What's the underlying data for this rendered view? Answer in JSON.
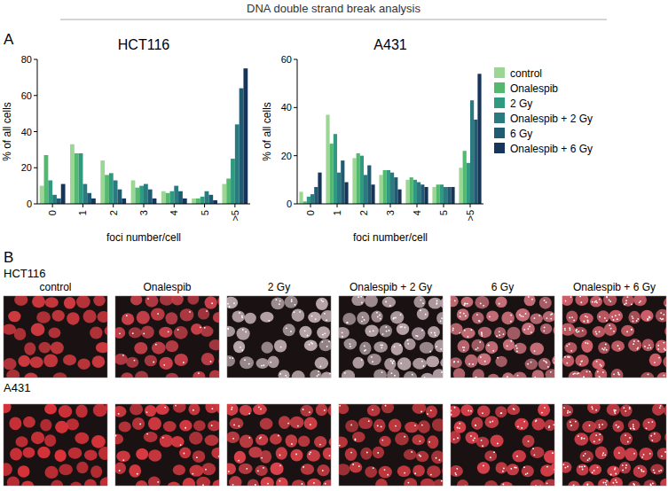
{
  "figure_title": "DNA double strand break analysis",
  "panel_a": {
    "label": "A"
  },
  "chart_data": [
    {
      "type": "bar",
      "title": "HCT116",
      "x_label": "foci number/cell",
      "y_label": "% of all cells",
      "categories": [
        "0",
        "1",
        "2",
        "3",
        "4",
        "5",
        ">5"
      ],
      "ylim": [
        0,
        80
      ],
      "yticks": [
        0,
        20,
        40,
        60,
        80
      ],
      "series": [
        {
          "name": "control",
          "color": "#9bd694",
          "values": [
            10,
            33,
            24,
            13,
            7,
            3,
            11
          ]
        },
        {
          "name": "Onalespib",
          "color": "#54b86e",
          "values": [
            27,
            28,
            16,
            9,
            6,
            3,
            14
          ]
        },
        {
          "name": "2 Gy",
          "color": "#2f9a80",
          "values": [
            13,
            28,
            17,
            10,
            7,
            4,
            25
          ]
        },
        {
          "name": "Onalespib + 2 Gy",
          "color": "#2a7b80",
          "values": [
            5,
            11,
            13,
            11,
            10,
            7,
            44
          ]
        },
        {
          "name": "6 Gy",
          "color": "#1f5b73",
          "values": [
            3,
            6,
            8,
            8,
            7,
            5,
            64
          ]
        },
        {
          "name": "Onalespib + 6 Gy",
          "color": "#15355a",
          "values": [
            11,
            3,
            3,
            3,
            3,
            2,
            75
          ]
        }
      ]
    },
    {
      "type": "bar",
      "title": "A431",
      "x_label": "foci number/cell",
      "y_label": "% of all cells",
      "categories": [
        "0",
        "1",
        "2",
        "3",
        "4",
        "5",
        ">5"
      ],
      "ylim": [
        0,
        60
      ],
      "yticks": [
        0,
        20,
        40,
        60
      ],
      "legend": "right",
      "series": [
        {
          "name": "control",
          "color": "#9bd694",
          "values": [
            5,
            37,
            19,
            12,
            10,
            7,
            15
          ]
        },
        {
          "name": "Onalespib",
          "color": "#54b86e",
          "values": [
            1,
            25,
            21,
            14,
            11,
            8,
            22
          ]
        },
        {
          "name": "2 Gy",
          "color": "#2f9a80",
          "values": [
            3,
            29,
            20,
            14,
            10,
            8,
            17
          ]
        },
        {
          "name": "Onalespib + 2 Gy",
          "color": "#2a7b80",
          "values": [
            4,
            13,
            12,
            13,
            9,
            7,
            43
          ]
        },
        {
          "name": "6 Gy",
          "color": "#1f5b73",
          "values": [
            7,
            18,
            16,
            11,
            8,
            7,
            35
          ]
        },
        {
          "name": "Onalespib + 6 Gy",
          "color": "#15355a",
          "values": [
            13,
            9,
            8,
            6,
            7,
            7,
            54
          ]
        }
      ]
    }
  ],
  "panel_b": {
    "label": "B",
    "columns": [
      "control",
      "Onalespib",
      "2 Gy",
      "Onalespib + 2 Gy",
      "6 Gy",
      "Onalespib + 6 Gy"
    ],
    "rows": [
      {
        "label": "HCT116"
      },
      {
        "label": "A431"
      }
    ]
  }
}
